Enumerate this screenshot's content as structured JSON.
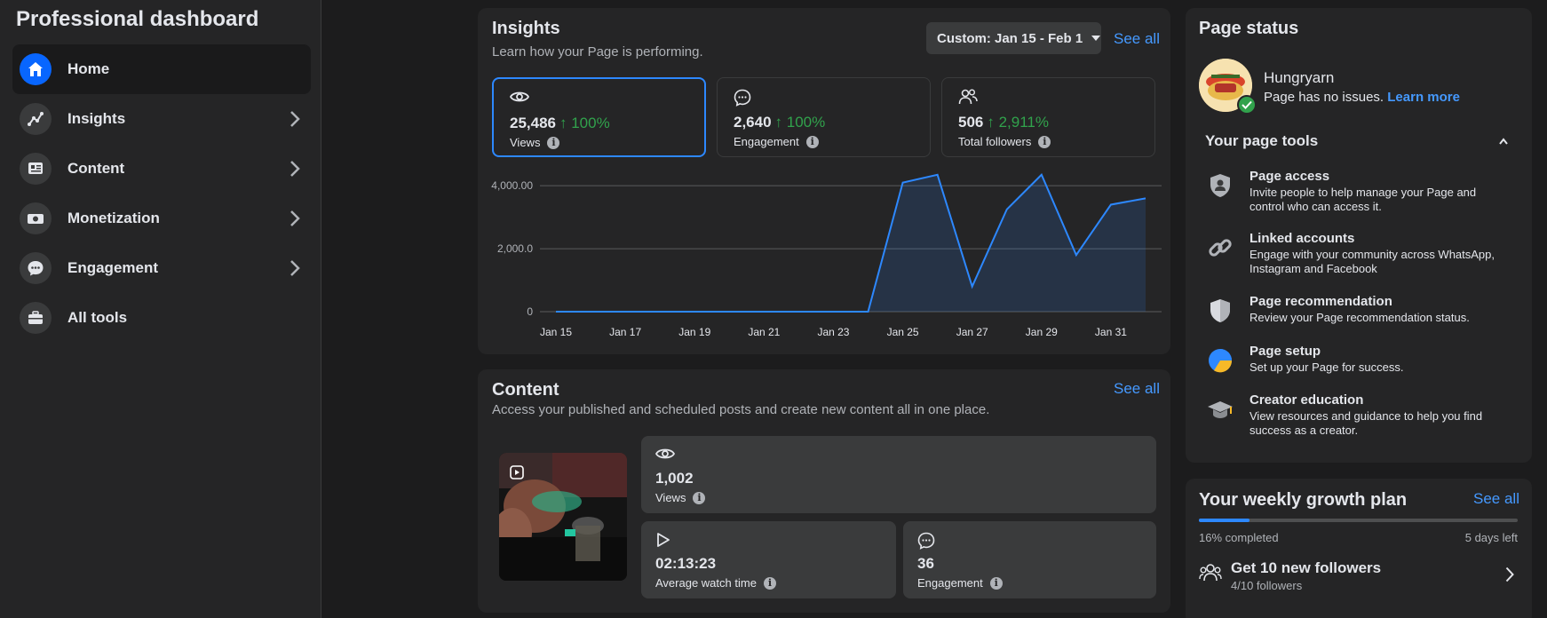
{
  "sidebar": {
    "title": "Professional dashboard",
    "items": [
      {
        "label": "Home"
      },
      {
        "label": "Insights"
      },
      {
        "label": "Content"
      },
      {
        "label": "Monetization"
      },
      {
        "label": "Engagement"
      },
      {
        "label": "All tools"
      }
    ]
  },
  "insights": {
    "title": "Insights",
    "subtitle": "Learn how your Page is performing.",
    "date_range": "Custom: Jan 15 - Feb 1",
    "see_all": "See all",
    "metrics": [
      {
        "value": "25,486",
        "change": "↑ 100%",
        "label": "Views",
        "icon": "eye-icon"
      },
      {
        "value": "2,640",
        "change": "↑ 100%",
        "label": "Engagement",
        "icon": "chat-icon"
      },
      {
        "value": "506",
        "change": "↑ 2,911%",
        "label": "Total followers",
        "icon": "followers-icon"
      }
    ]
  },
  "chart_data": {
    "type": "area",
    "x": [
      "Jan 15",
      "Jan 16",
      "Jan 17",
      "Jan 18",
      "Jan 19",
      "Jan 20",
      "Jan 21",
      "Jan 22",
      "Jan 23",
      "Jan 24",
      "Jan 25",
      "Jan 26",
      "Jan 27",
      "Jan 28",
      "Jan 29",
      "Jan 30",
      "Jan 31",
      "Feb 1"
    ],
    "tick_labels": [
      "Jan 15",
      "Jan 17",
      "Jan 19",
      "Jan 21",
      "Jan 23",
      "Jan 25",
      "Jan 27",
      "Jan 29",
      "Jan 31"
    ],
    "y_tick_labels": [
      "0",
      "2,000.0",
      "4,000.00"
    ],
    "y_ticks": [
      0,
      2000,
      4000
    ],
    "series": [
      {
        "values": [
          0,
          0,
          0,
          0,
          0,
          0,
          0,
          0,
          0,
          0,
          4100,
          4350,
          800,
          3250,
          4350,
          1800,
          3400,
          3600
        ]
      }
    ],
    "ylim": [
      0,
      4400
    ],
    "grid": true,
    "color": "#2d88ff"
  },
  "content": {
    "title": "Content",
    "subtitle": "Access your published and scheduled posts and create new content all in one place.",
    "see_all": "See all",
    "views_value": "1,002",
    "views_label": "Views",
    "watch_value": "02:13:23",
    "watch_label": "Average watch time",
    "engagement_value": "36",
    "engagement_label": "Engagement"
  },
  "page_status": {
    "title": "Page status",
    "page_name": "Hungryarn",
    "status_text": "Page has no issues.",
    "learn_more": "Learn more",
    "tools_title": "Your page tools",
    "tools": [
      {
        "title": "Page access",
        "desc": "Invite people to help manage your Page and control who can access it.",
        "icon": "shield-person-icon"
      },
      {
        "title": "Linked accounts",
        "desc": "Engage with your community across WhatsApp, Instagram and Facebook",
        "icon": "link-icon"
      },
      {
        "title": "Page recommendation",
        "desc": "Review your Page recommendation status.",
        "icon": "shield-icon"
      },
      {
        "title": "Page setup",
        "desc": "Set up your Page for success.",
        "icon": "pie-icon"
      },
      {
        "title": "Creator education",
        "desc": "View resources and guidance to help you find success as a creator.",
        "icon": "graduation-cap-icon"
      }
    ]
  },
  "growth": {
    "title": "Your weekly growth plan",
    "see_all": "See all",
    "progress": 0.16,
    "completed_text": "16% completed",
    "days_left": "5 days left",
    "task_title": "Get 10 new followers",
    "task_sub": "4/10 followers"
  },
  "colors": {
    "accent": "#0866ff",
    "link": "#4599ff",
    "positive": "#31a24c",
    "chart_line": "#2d88ff"
  }
}
